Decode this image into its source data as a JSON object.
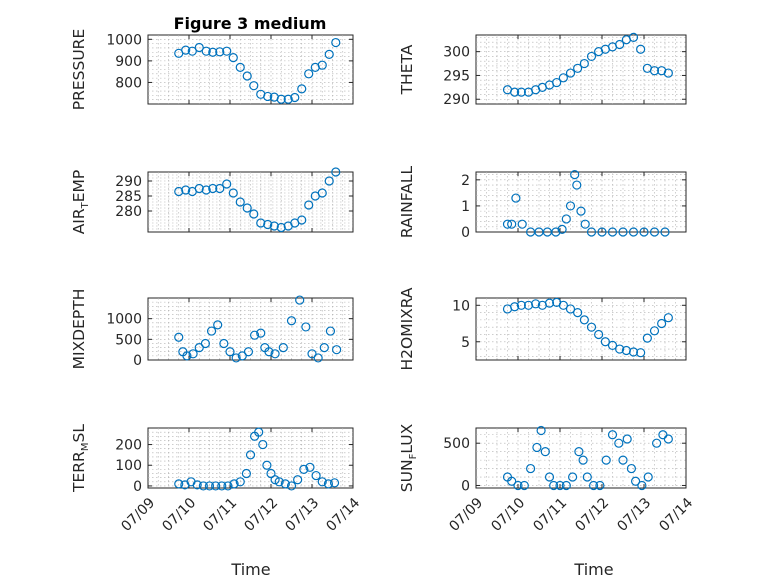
{
  "figure": {
    "title": "Figure 3 medium",
    "marker_color": "#0072bd",
    "xlabel": "Time"
  },
  "chart_data": [
    {
      "type": "scatter",
      "ylabel": "PRESSURE",
      "ylim": [
        700,
        1020
      ],
      "yticks": [
        800,
        900,
        1000
      ],
      "xlim": [
        0,
        5
      ],
      "xtick_labels": [],
      "x": [
        0.75,
        0.92,
        1.08,
        1.25,
        1.42,
        1.58,
        1.75,
        1.92,
        2.08,
        2.25,
        2.42,
        2.58,
        2.75,
        2.92,
        3.08,
        3.25,
        3.42,
        3.58,
        3.75,
        3.92,
        4.08,
        4.25,
        4.42,
        4.58
      ],
      "y": [
        935,
        950,
        945,
        962,
        945,
        940,
        942,
        945,
        915,
        870,
        830,
        785,
        745,
        735,
        732,
        722,
        722,
        730,
        770,
        840,
        870,
        880,
        930,
        985
      ]
    },
    {
      "type": "scatter",
      "ylabel": "THETA",
      "ylim": [
        289,
        303.5
      ],
      "yticks": [
        290,
        295,
        300
      ],
      "xlim": [
        0,
        5
      ],
      "xtick_labels": [],
      "x": [
        0.75,
        0.92,
        1.08,
        1.25,
        1.42,
        1.58,
        1.75,
        1.92,
        2.08,
        2.25,
        2.42,
        2.58,
        2.75,
        2.92,
        3.08,
        3.25,
        3.42,
        3.58,
        3.75,
        3.92,
        4.08,
        4.25,
        4.42,
        4.58
      ],
      "y": [
        292,
        291.5,
        291.5,
        291.5,
        292,
        292.5,
        293,
        293.5,
        294.5,
        295.5,
        296.5,
        297.5,
        299,
        300,
        300.5,
        301,
        301.5,
        302.5,
        303,
        300.5,
        296.5,
        296,
        296,
        295.5
      ]
    },
    {
      "type": "scatter",
      "ylabel": "AIR_TEMP",
      "ylabel_base": "AIR",
      "ylabel_sub": "T",
      "ylabel_rest": "EMP",
      "ylim": [
        273,
        293
      ],
      "yticks": [
        280,
        285,
        290
      ],
      "xlim": [
        0,
        5
      ],
      "xtick_labels": [],
      "x": [
        0.75,
        0.92,
        1.08,
        1.25,
        1.42,
        1.58,
        1.75,
        1.92,
        2.08,
        2.25,
        2.42,
        2.58,
        2.75,
        2.92,
        3.08,
        3.25,
        3.42,
        3.58,
        3.75,
        3.92,
        4.08,
        4.25,
        4.42,
        4.58
      ],
      "y": [
        286.5,
        287,
        286.5,
        287.5,
        287,
        287.5,
        287.5,
        289,
        286,
        283,
        281,
        279,
        276,
        275.5,
        275,
        274.5,
        275,
        276,
        277,
        282,
        285,
        286,
        290,
        293
      ]
    },
    {
      "type": "scatter",
      "ylabel": "RAINFALL",
      "ylim": [
        0,
        2.3
      ],
      "yticks": [
        0,
        1,
        2
      ],
      "xlim": [
        0,
        5
      ],
      "xtick_labels": [],
      "x": [
        0.75,
        0.85,
        0.95,
        1.1,
        1.3,
        1.5,
        1.7,
        1.9,
        2.05,
        2.15,
        2.25,
        2.35,
        2.4,
        2.5,
        2.6,
        2.75,
        3.0,
        3.25,
        3.5,
        3.75,
        4.0,
        4.25,
        4.5
      ],
      "y": [
        0.3,
        0.3,
        1.3,
        0.3,
        0,
        0,
        0,
        0,
        0.1,
        0.5,
        1.0,
        2.2,
        1.8,
        0.8,
        0.3,
        0,
        0,
        0,
        0,
        0,
        0,
        0,
        0
      ]
    },
    {
      "type": "scatter",
      "ylabel": "MIXDEPTH",
      "ylim": [
        0,
        1500
      ],
      "yticks": [
        0,
        500,
        1000
      ],
      "xlim": [
        0,
        5
      ],
      "xtick_labels": [],
      "x": [
        0.75,
        0.85,
        0.95,
        1.1,
        1.25,
        1.4,
        1.55,
        1.7,
        1.85,
        2.0,
        2.15,
        2.3,
        2.45,
        2.6,
        2.75,
        2.85,
        2.95,
        3.1,
        3.3,
        3.5,
        3.7,
        3.85,
        4.0,
        4.15,
        4.3,
        4.45,
        4.6
      ],
      "y": [
        550,
        200,
        100,
        150,
        300,
        400,
        700,
        850,
        400,
        200,
        50,
        100,
        200,
        600,
        650,
        300,
        200,
        150,
        300,
        950,
        1450,
        800,
        150,
        50,
        300,
        700,
        250
      ]
    },
    {
      "type": "scatter",
      "ylabel": "H2OMIXRA",
      "ylim": [
        2.5,
        11
      ],
      "yticks": [
        5,
        10
      ],
      "xlim": [
        0,
        5
      ],
      "xtick_labels": [],
      "x": [
        0.75,
        0.92,
        1.08,
        1.25,
        1.42,
        1.58,
        1.75,
        1.92,
        2.08,
        2.25,
        2.42,
        2.58,
        2.75,
        2.92,
        3.08,
        3.25,
        3.42,
        3.58,
        3.75,
        3.92,
        4.08,
        4.25,
        4.42,
        4.58
      ],
      "y": [
        9.5,
        9.8,
        10,
        10,
        10.2,
        10,
        10.3,
        10.4,
        10,
        9.5,
        9,
        8,
        7,
        6,
        5,
        4.5,
        4,
        3.8,
        3.6,
        3.5,
        5.5,
        6.5,
        7.5,
        8.3
      ]
    },
    {
      "type": "scatter",
      "ylabel": "TERR_MSL",
      "ylabel_base": "TERR",
      "ylabel_sub": "M",
      "ylabel_rest": "SL",
      "ylim": [
        -10,
        280
      ],
      "yticks": [
        0,
        100,
        200
      ],
      "xlim": [
        0,
        5
      ],
      "xtick_labels": [
        "07/09",
        "07/10",
        "07/11",
        "07/12",
        "07/13",
        "07/14"
      ],
      "x": [
        0.75,
        0.9,
        1.05,
        1.2,
        1.35,
        1.5,
        1.65,
        1.8,
        1.95,
        2.1,
        2.25,
        2.4,
        2.5,
        2.6,
        2.7,
        2.8,
        2.9,
        3.0,
        3.1,
        3.2,
        3.35,
        3.5,
        3.65,
        3.8,
        3.95,
        4.1,
        4.25,
        4.4,
        4.55
      ],
      "y": [
        10,
        5,
        20,
        5,
        0,
        0,
        0,
        0,
        0,
        10,
        20,
        60,
        150,
        240,
        260,
        200,
        100,
        60,
        30,
        20,
        10,
        0,
        30,
        80,
        90,
        50,
        20,
        10,
        15
      ]
    },
    {
      "type": "scatter",
      "ylabel": "SUN_FLUX",
      "ylabel_base": "SUN",
      "ylabel_sub": "F",
      "ylabel_rest": "LUX",
      "ylim": [
        -30,
        680
      ],
      "yticks": [
        0,
        500
      ],
      "xlim": [
        0,
        5
      ],
      "xtick_labels": [
        "07/09",
        "07/10",
        "07/11",
        "07/12",
        "07/13",
        "07/14"
      ],
      "x": [
        0.75,
        0.85,
        1.0,
        1.15,
        1.3,
        1.45,
        1.55,
        1.65,
        1.75,
        1.85,
        2.0,
        2.15,
        2.3,
        2.45,
        2.55,
        2.65,
        2.8,
        2.95,
        3.1,
        3.25,
        3.4,
        3.5,
        3.6,
        3.7,
        3.8,
        3.95,
        4.1,
        4.3,
        4.45,
        4.58
      ],
      "y": [
        100,
        50,
        0,
        0,
        200,
        450,
        650,
        400,
        100,
        0,
        0,
        0,
        100,
        400,
        300,
        100,
        0,
        0,
        300,
        600,
        500,
        300,
        550,
        200,
        50,
        0,
        100,
        500,
        600,
        550
      ]
    }
  ]
}
